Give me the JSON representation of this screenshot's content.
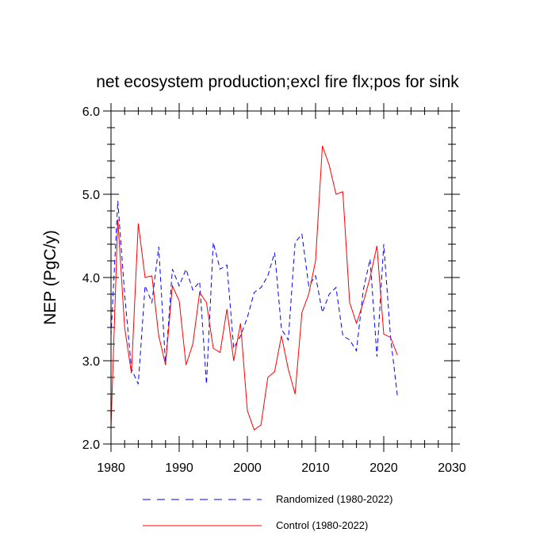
{
  "chart_data": {
    "type": "line",
    "title": "net ecosystem production;excl fire flx;pos for sink",
    "xlabel": "",
    "ylabel": "NEP  (PgC/y)",
    "xlim": [
      1980,
      2030
    ],
    "ylim": [
      2.0,
      6.0
    ],
    "xticks": [
      1980,
      1990,
      2000,
      2010,
      2020,
      2030
    ],
    "yticks": [
      2.0,
      3.0,
      4.0,
      5.0,
      6.0
    ],
    "xtick_labels": [
      "1980",
      "1990",
      "2000",
      "2010",
      "2020",
      "2030"
    ],
    "ytick_labels": [
      "2.0",
      "3.0",
      "4.0",
      "5.0",
      "6.0"
    ],
    "grid": false,
    "legend_position": "bottom",
    "series": [
      {
        "name": "Randomized (1980-2022)",
        "color": "#0000ff",
        "style": "dashed",
        "x": [
          1980,
          1981,
          1982,
          1983,
          1984,
          1985,
          1986,
          1987,
          1988,
          1989,
          1990,
          1991,
          1992,
          1993,
          1994,
          1995,
          1996,
          1997,
          1998,
          1999,
          2000,
          2001,
          2002,
          2003,
          2004,
          2005,
          2006,
          2007,
          2008,
          2009,
          2010,
          2011,
          2012,
          2013,
          2014,
          2015,
          2016,
          2017,
          2018,
          2019,
          2020,
          2021,
          2022
        ],
        "values": [
          3.3,
          4.92,
          3.8,
          2.9,
          2.72,
          3.9,
          3.7,
          4.37,
          2.95,
          4.1,
          3.9,
          4.1,
          3.85,
          3.95,
          2.72,
          4.42,
          4.1,
          4.15,
          3.15,
          3.3,
          3.52,
          3.82,
          3.88,
          4.02,
          4.3,
          3.38,
          3.25,
          4.42,
          4.52,
          3.9,
          4.02,
          3.58,
          3.8,
          3.88,
          3.3,
          3.25,
          3.12,
          3.85,
          4.22,
          3.05,
          4.4,
          3.28,
          2.58
        ]
      },
      {
        "name": "Control (1980-2022)",
        "color": "#ff0000",
        "style": "solid",
        "x": [
          1980,
          1981,
          1982,
          1983,
          1984,
          1985,
          1986,
          1987,
          1988,
          1989,
          1990,
          1991,
          1992,
          1993,
          1994,
          1995,
          1996,
          1997,
          1998,
          1999,
          2000,
          2001,
          2002,
          2003,
          2004,
          2005,
          2006,
          2007,
          2008,
          2009,
          2010,
          2011,
          2012,
          2013,
          2014,
          2015,
          2016,
          2017,
          2018,
          2019,
          2020,
          2021,
          2022
        ],
        "values": [
          2.2,
          4.7,
          3.4,
          2.85,
          4.65,
          4.0,
          4.02,
          3.3,
          2.95,
          3.9,
          3.72,
          2.95,
          3.2,
          3.82,
          3.7,
          3.15,
          3.1,
          3.62,
          3.0,
          3.45,
          2.4,
          2.17,
          2.23,
          2.8,
          2.87,
          3.3,
          2.9,
          2.6,
          3.58,
          3.8,
          4.2,
          5.58,
          5.35,
          5.0,
          5.03,
          3.7,
          3.45,
          3.7,
          4.0,
          4.38,
          3.32,
          3.28,
          3.07
        ]
      }
    ]
  }
}
